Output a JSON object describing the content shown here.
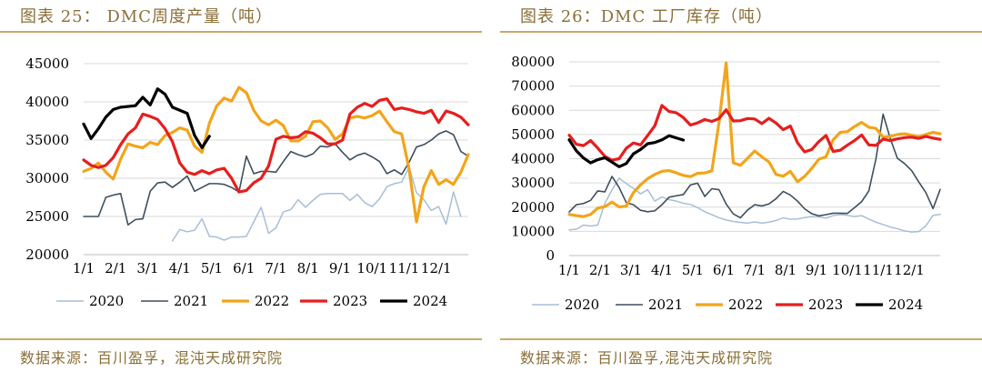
{
  "colors": {
    "s2020": "#a7bed8",
    "s2021": "#3d4f5e",
    "s2022": "#f2a51a",
    "s2023": "#e61e1e",
    "s2024": "#000000",
    "frame": "#c9a86a",
    "text_brand": "#8a6f38"
  },
  "chart_data": [
    {
      "type": "line",
      "title": "图表 25： DMC周度产量（吨）",
      "source": "数据来源：百川盈孚，混沌天成研究院",
      "ylim": [
        20000,
        45000
      ],
      "yticks": [
        "20000",
        "25000",
        "30000",
        "35000",
        "40000",
        "45000"
      ],
      "xlim": [
        0,
        52
      ],
      "xticks": [
        "1/1",
        "2/1",
        "3/1",
        "4/1",
        "5/1",
        "6/1",
        "7/1",
        "8/1",
        "9/1",
        "10/1",
        "11/1",
        "12/1"
      ],
      "grid": true,
      "legend_position": "bottom",
      "series": [
        {
          "name": "2020",
          "x": [
            12,
            13,
            14,
            15,
            16,
            17,
            18,
            19,
            20,
            21,
            22,
            23,
            24,
            25,
            26,
            27,
            28,
            29,
            30,
            31,
            32,
            33,
            34,
            35,
            36,
            37,
            38,
            39,
            40,
            41,
            42,
            43,
            44,
            45,
            46,
            47,
            48,
            49,
            50,
            51
          ],
          "values": [
            21800,
            23300,
            23000,
            23200,
            24700,
            22400,
            22300,
            21900,
            22300,
            22300,
            22400,
            24300,
            26200,
            22800,
            23500,
            25600,
            25900,
            27200,
            26200,
            27100,
            27900,
            28000,
            28000,
            28000,
            27100,
            27900,
            26800,
            26300,
            27300,
            28900,
            29300,
            29500,
            31500,
            28100,
            27200,
            25800,
            26300,
            24000,
            28200,
            25000
          ]
        },
        {
          "name": "2021",
          "x": [
            0,
            1,
            2,
            3,
            4,
            5,
            6,
            7,
            8,
            9,
            10,
            11,
            12,
            13,
            14,
            15,
            16,
            17,
            18,
            19,
            20,
            21,
            22,
            23,
            24,
            25,
            26,
            27,
            28,
            29,
            30,
            31,
            32,
            33,
            34,
            35,
            36,
            37,
            38,
            39,
            40,
            41,
            42,
            43,
            44,
            45,
            46,
            47,
            48,
            49,
            50,
            51,
            52
          ],
          "values": [
            25000,
            25000,
            25000,
            27500,
            27800,
            28000,
            23900,
            24600,
            24700,
            28300,
            29400,
            29500,
            28800,
            29500,
            30300,
            28300,
            28800,
            29300,
            29300,
            29200,
            28800,
            28200,
            32900,
            30600,
            30900,
            30900,
            30800,
            32200,
            33500,
            33100,
            32800,
            33200,
            34200,
            34100,
            34500,
            33400,
            32400,
            33000,
            33300,
            32800,
            32200,
            30600,
            31100,
            30500,
            32100,
            34100,
            34400,
            35000,
            35800,
            36200,
            35700,
            33500,
            32900
          ]
        },
        {
          "name": "2022",
          "x": [
            0,
            1,
            2,
            3,
            4,
            5,
            6,
            7,
            8,
            9,
            10,
            11,
            12,
            13,
            14,
            15,
            16,
            17,
            18,
            19,
            20,
            21,
            22,
            23,
            24,
            25,
            26,
            27,
            28,
            29,
            30,
            31,
            32,
            33,
            34,
            35,
            36,
            37,
            38,
            39,
            40,
            41,
            42,
            43,
            44,
            45,
            46,
            47,
            48,
            49,
            50,
            51,
            52
          ],
          "values": [
            30900,
            31300,
            32000,
            30800,
            29900,
            32500,
            34500,
            34200,
            34000,
            34700,
            34400,
            35600,
            36000,
            36600,
            36300,
            34200,
            33400,
            37200,
            39500,
            40500,
            40100,
            41900,
            41200,
            38900,
            37500,
            37000,
            37600,
            36900,
            34900,
            34900,
            35500,
            37400,
            37500,
            36600,
            35100,
            35800,
            37900,
            38100,
            37900,
            38200,
            38800,
            37400,
            36100,
            35800,
            31200,
            24300,
            28900,
            31000,
            29200,
            29800,
            29200,
            30800,
            33100
          ]
        },
        {
          "name": "2023",
          "x": [
            0,
            1,
            2,
            3,
            4,
            5,
            6,
            7,
            8,
            9,
            10,
            11,
            12,
            13,
            14,
            15,
            16,
            17,
            18,
            19,
            20,
            21,
            22,
            23,
            24,
            25,
            26,
            27,
            28,
            29,
            30,
            31,
            32,
            33,
            34,
            35,
            36,
            37,
            38,
            39,
            40,
            41,
            42,
            43,
            44,
            45,
            46,
            47,
            48,
            49,
            50,
            51,
            52
          ],
          "values": [
            32400,
            31700,
            31400,
            31700,
            32700,
            34400,
            35800,
            36600,
            38400,
            38100,
            37700,
            36500,
            34800,
            32000,
            30800,
            30500,
            31000,
            30600,
            31100,
            31300,
            30000,
            28200,
            28400,
            29400,
            30000,
            31600,
            35100,
            35500,
            35300,
            35400,
            36100,
            35900,
            35300,
            34500,
            34500,
            35000,
            38400,
            39300,
            39800,
            39400,
            40200,
            40400,
            39000,
            39200,
            39000,
            38700,
            38500,
            38900,
            37300,
            38800,
            38500,
            38000,
            37000
          ]
        },
        {
          "name": "2024",
          "x": [
            0,
            1,
            2,
            3,
            4,
            5,
            6,
            7,
            8,
            9,
            10,
            11,
            12,
            13,
            14,
            15,
            16,
            17
          ],
          "values": [
            37100,
            35200,
            36500,
            38000,
            39000,
            39300,
            39400,
            39500,
            40600,
            39600,
            41700,
            41000,
            39300,
            38900,
            38500,
            35600,
            34000,
            35500
          ]
        }
      ]
    },
    {
      "type": "line",
      "title": "图表 26：DMC 工厂库存（吨）",
      "source": "数据来源：百川盈孚,混沌天成研究院",
      "ylim": [
        0,
        80000
      ],
      "yticks": [
        "0",
        "10000",
        "20000",
        "30000",
        "40000",
        "50000",
        "60000",
        "70000",
        "80000"
      ],
      "xlim": [
        0,
        52
      ],
      "xticks": [
        "1/1",
        "2/1",
        "3/1",
        "4/1",
        "5/1",
        "6/1",
        "7/1",
        "8/1",
        "9/1",
        "10/1",
        "11/1",
        "12/1"
      ],
      "grid": true,
      "legend_position": "bottom",
      "series": [
        {
          "name": "2020",
          "x": [
            0,
            1,
            2,
            3,
            4,
            5,
            6,
            7,
            8,
            9,
            10,
            11,
            12,
            13,
            14,
            15,
            16,
            17,
            18,
            19,
            20,
            21,
            22,
            23,
            24,
            25,
            26,
            27,
            28,
            29,
            30,
            31,
            32,
            33,
            34,
            35,
            36,
            37,
            38,
            39,
            40,
            41,
            42,
            43,
            44,
            45,
            46,
            47,
            48,
            49,
            50,
            51,
            52
          ],
          "values": [
            10600,
            10900,
            12600,
            12200,
            12600,
            21600,
            27100,
            32000,
            29700,
            27800,
            25500,
            27200,
            22500,
            24200,
            23100,
            22500,
            21600,
            21100,
            19800,
            18100,
            16900,
            15600,
            14700,
            14100,
            13700,
            13400,
            13900,
            13400,
            13800,
            14500,
            15600,
            15000,
            15100,
            15700,
            16100,
            15900,
            15500,
            16500,
            16900,
            16600,
            16100,
            16500,
            15100,
            13800,
            12800,
            11800,
            11100,
            10200,
            9700,
            9900,
            12300,
            16600,
            17000
          ]
        },
        {
          "name": "2021",
          "x": [
            0,
            1,
            2,
            3,
            4,
            5,
            6,
            7,
            8,
            9,
            10,
            11,
            12,
            13,
            14,
            15,
            16,
            17,
            18,
            19,
            20,
            21,
            22,
            23,
            24,
            25,
            26,
            27,
            28,
            29,
            30,
            31,
            32,
            33,
            34,
            35,
            36,
            37,
            38,
            39,
            40,
            41,
            42,
            43,
            44,
            45,
            46,
            47,
            48,
            49,
            50,
            51,
            52
          ],
          "values": [
            18000,
            21000,
            21500,
            22800,
            26700,
            26300,
            32700,
            28100,
            21900,
            21000,
            18700,
            18100,
            18500,
            21000,
            24100,
            24700,
            25200,
            29200,
            29900,
            24400,
            27600,
            27200,
            21300,
            17200,
            15600,
            18800,
            21000,
            20500,
            21300,
            23500,
            26500,
            25000,
            22500,
            19300,
            17300,
            16400,
            16900,
            17500,
            17500,
            17400,
            19800,
            22300,
            26700,
            40000,
            58400,
            48400,
            40200,
            38000,
            35100,
            30400,
            26000,
            19400,
            27300
          ]
        },
        {
          "name": "2022",
          "x": [
            0,
            1,
            2,
            3,
            4,
            5,
            6,
            7,
            8,
            9,
            10,
            11,
            12,
            13,
            14,
            15,
            16,
            17,
            18,
            19,
            20,
            21,
            22,
            23,
            24,
            25,
            26,
            27,
            28,
            29,
            30,
            31,
            32,
            33,
            34,
            35,
            36,
            37,
            38,
            39,
            40,
            41,
            42,
            43,
            44,
            45,
            46,
            47,
            48,
            49,
            50,
            51,
            52
          ],
          "values": [
            17000,
            16500,
            16100,
            17000,
            19600,
            20200,
            22100,
            20100,
            20400,
            26000,
            29200,
            31800,
            33500,
            34800,
            35100,
            34200,
            33100,
            32600,
            34000,
            34100,
            35000,
            55000,
            79600,
            38300,
            37300,
            40200,
            43200,
            40800,
            38700,
            33500,
            32800,
            34800,
            30500,
            32700,
            36000,
            39800,
            40800,
            47800,
            50900,
            51200,
            53300,
            55000,
            53000,
            52500,
            48900,
            49200,
            50000,
            50300,
            49700,
            49100,
            50000,
            50900,
            50300
          ]
        },
        {
          "name": "2023",
          "x": [
            0,
            1,
            2,
            3,
            4,
            5,
            6,
            7,
            8,
            9,
            10,
            11,
            12,
            13,
            14,
            15,
            16,
            17,
            18,
            19,
            20,
            21,
            22,
            23,
            24,
            25,
            26,
            27,
            28,
            29,
            30,
            31,
            32,
            33,
            34,
            35,
            36,
            37,
            38,
            39,
            40,
            41,
            42,
            43,
            44,
            45,
            46,
            47,
            48,
            49,
            50,
            51,
            52
          ],
          "values": [
            49700,
            46000,
            45400,
            47500,
            44400,
            41000,
            39400,
            40000,
            44300,
            46500,
            45700,
            49600,
            53600,
            62000,
            59500,
            59000,
            57000,
            53900,
            54800,
            56200,
            55400,
            56600,
            60200,
            55600,
            55700,
            56600,
            56400,
            54500,
            56700,
            54700,
            52000,
            53500,
            46600,
            42800,
            43800,
            47100,
            49600,
            43000,
            43500,
            45600,
            47500,
            49800,
            45700,
            45500,
            48100,
            47500,
            48200,
            48700,
            48900,
            48400,
            49200,
            48500,
            48000
          ]
        },
        {
          "name": "2024",
          "x": [
            0,
            1,
            2,
            3,
            4,
            5,
            6,
            7,
            8,
            9,
            10,
            11,
            12,
            13,
            14,
            15,
            16
          ],
          "values": [
            47800,
            43300,
            40300,
            38300,
            39600,
            40400,
            38600,
            36700,
            38000,
            42000,
            43800,
            46200,
            46700,
            47800,
            49500,
            48600,
            47700
          ]
        }
      ]
    }
  ]
}
